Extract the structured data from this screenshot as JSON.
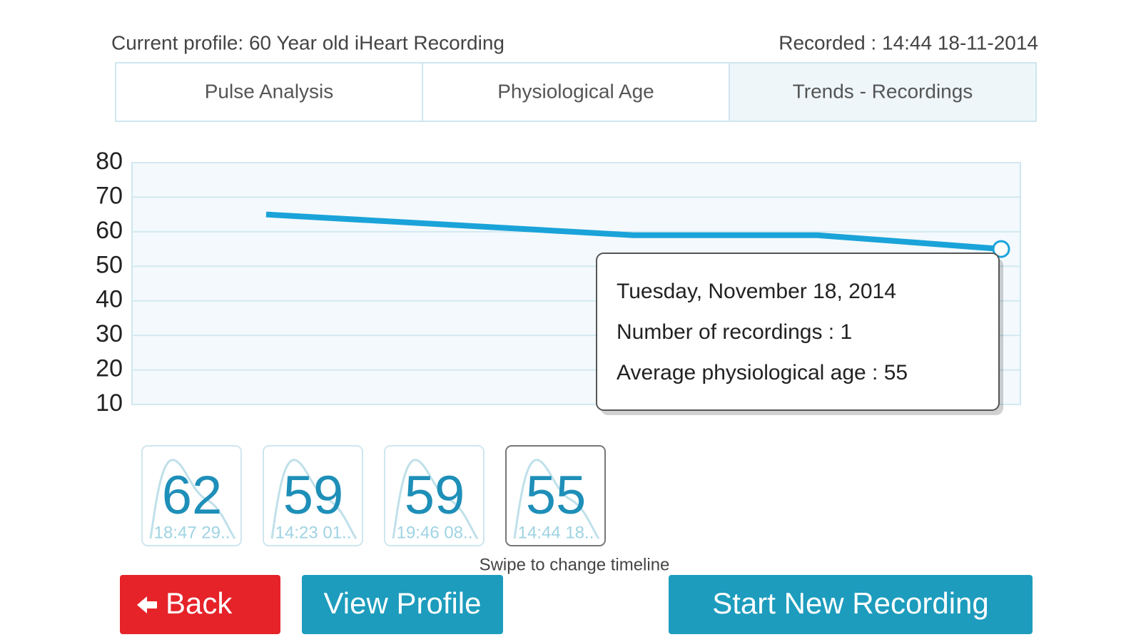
{
  "header": {
    "profile": "Current profile: 60 Year old iHeart Recording",
    "recorded": "Recorded : 14:44 18-11-2014"
  },
  "tabs": [
    "Pulse Analysis",
    "Physiological Age",
    "Trends - Recordings"
  ],
  "chart_data": {
    "type": "line",
    "categories": [
      null,
      null,
      null,
      null,
      null
    ],
    "values": [
      65,
      62,
      59,
      59,
      55
    ],
    "color": "#1aa3d9",
    "ylim": [
      10,
      80
    ],
    "yticks": [
      10,
      20,
      30,
      40,
      50,
      60,
      70,
      80
    ],
    "grid": true,
    "tooltip": [
      "Tuesday, November 18, 2014",
      "Number of recordings : 1",
      "Average physiological age : 55"
    ]
  },
  "thumbnails": [
    {
      "value": "62",
      "time": "18:47 29.."
    },
    {
      "value": "59",
      "time": "14:23 01.."
    },
    {
      "value": "59",
      "time": "19:46 08.."
    },
    {
      "value": "55",
      "time": "14:44 18.."
    }
  ],
  "hint": "Swipe to change timeline",
  "buttons": [
    "Back",
    "View Profile",
    "Start New Recording"
  ]
}
